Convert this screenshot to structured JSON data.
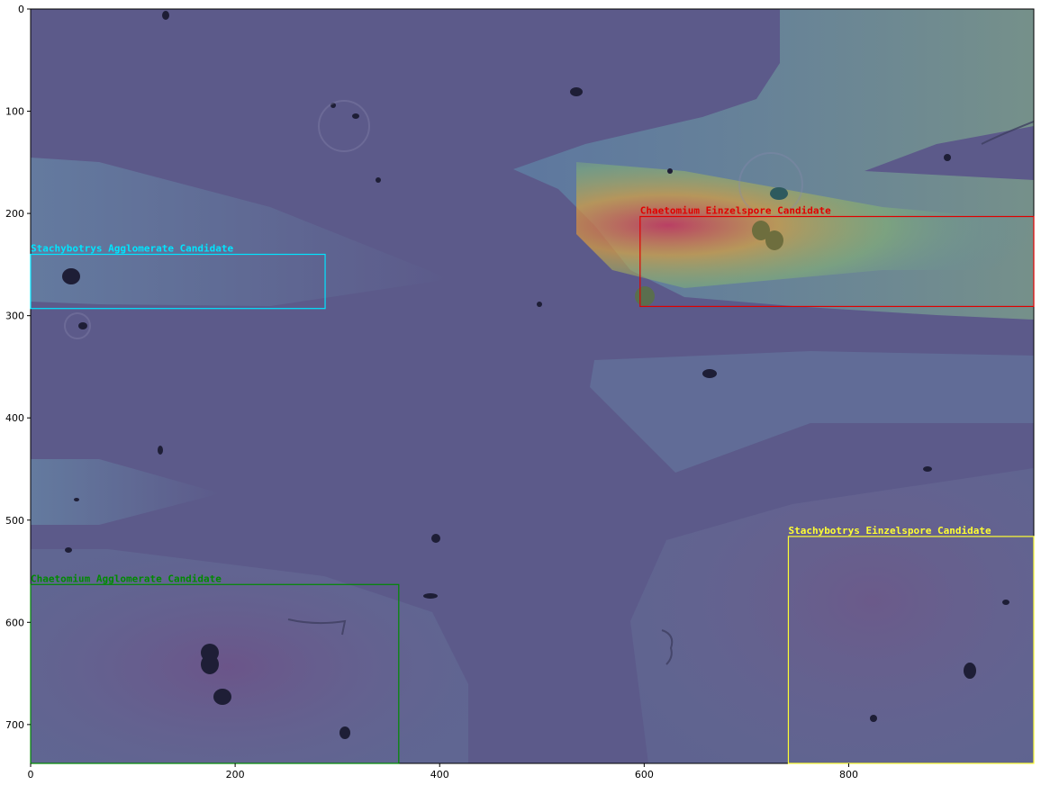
{
  "image": {
    "width": 981,
    "height": 738,
    "x_ticks": [
      "0",
      "200",
      "400",
      "600",
      "800"
    ],
    "y_ticks": [
      "0",
      "100",
      "200",
      "300",
      "400",
      "500",
      "600",
      "700"
    ]
  },
  "colors": {
    "background": "#5c5a8a",
    "cyan": "#00e5ff",
    "red": "#e00000",
    "yellow": "#ffff33",
    "green": "#008a00"
  },
  "detections": [
    {
      "label": "Stachybotrys Agglomerate Candidate",
      "color": "cyan",
      "x0": 0,
      "y0": 240,
      "x1": 288,
      "y1": 293
    },
    {
      "label": "Chaetomium Einzelspore Candidate",
      "color": "red",
      "x0": 596,
      "y0": 203,
      "x1": 981,
      "y1": 291
    },
    {
      "label": "Stachybotrys Einzelspore Candidate",
      "color": "yellow",
      "x0": 741,
      "y0": 516,
      "x1": 981,
      "y1": 738
    },
    {
      "label": "Chaetomium Agglomerate Candidate",
      "color": "green",
      "x0": 0,
      "y0": 563,
      "x1": 360,
      "y1": 738
    }
  ]
}
